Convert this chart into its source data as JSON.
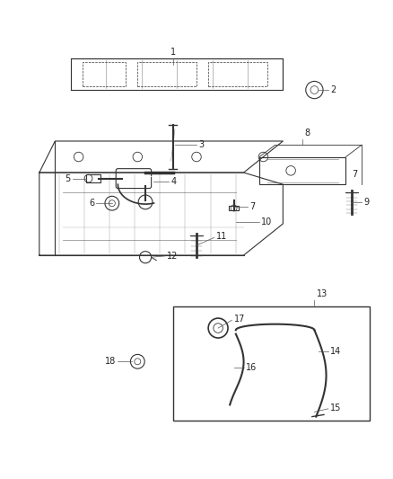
{
  "bg_color": "#ffffff",
  "fig_width": 4.38,
  "fig_height": 5.33,
  "dpi": 100,
  "line_color": "#333333",
  "label_fontsize": 7,
  "label_color": "#222222"
}
